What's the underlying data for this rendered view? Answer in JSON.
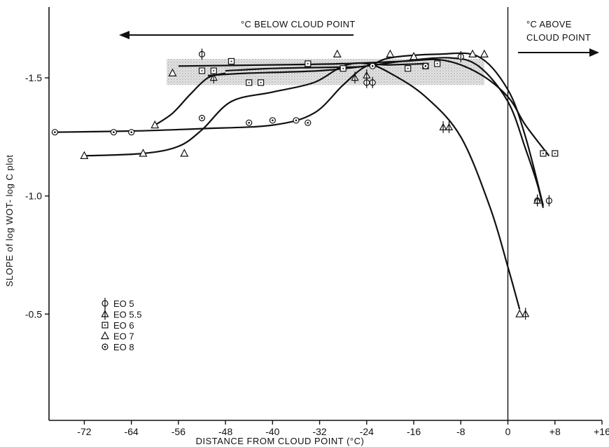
{
  "chart_data": {
    "type": "scatter",
    "title": "",
    "xlabel": "DISTANCE FROM CLOUD POINT (°C)",
    "ylabel": "SLOPE of log WOT- log C plot",
    "xlim": [
      -78,
      16
    ],
    "ylim": [
      -1.8,
      -0.05
    ],
    "y_reversed": true,
    "x_ticks": [
      -72,
      -64,
      -56,
      -48,
      -40,
      -32,
      -24,
      -16,
      -8,
      0,
      8,
      16
    ],
    "x_tick_labels": [
      "-72",
      "-64",
      "-56",
      "-48",
      "-40",
      "-32",
      "-24",
      "-16",
      "-8",
      "0",
      "+8",
      "+16"
    ],
    "y_ticks": [
      -1.5,
      -1.0,
      -0.5
    ],
    "y_tick_labels": [
      "-1.5",
      "-1.0",
      "-0.5"
    ],
    "grid": false,
    "legend_position": "bottom-left",
    "annotations": {
      "below": "°C BELOW CLOUD POINT",
      "above_line1": "°C ABOVE",
      "above_line2": "CLOUD POINT"
    },
    "shaded_band": {
      "x": [
        -58,
        -4
      ],
      "y": [
        -1.58,
        -1.47
      ]
    },
    "reference_line_x": 0,
    "series": [
      {
        "name": "EO 5",
        "marker": "circle-bar",
        "points": [
          [
            -52,
            -1.6
          ],
          [
            -24,
            -1.48
          ],
          [
            -23,
            -1.48
          ],
          [
            -8,
            -1.59
          ],
          [
            5,
            -0.98
          ],
          [
            7,
            -0.98
          ]
        ],
        "curve": [
          [
            -51,
            -1.51
          ],
          [
            -44,
            -1.52
          ],
          [
            -32,
            -1.53
          ],
          [
            -24,
            -1.55
          ],
          [
            -18,
            -1.57
          ],
          [
            -10,
            -1.585
          ],
          [
            -5,
            -1.55
          ],
          [
            0,
            -1.4
          ],
          [
            3,
            -1.2
          ],
          [
            5,
            -1.05
          ],
          [
            6,
            -0.95
          ]
        ]
      },
      {
        "name": "EO 5.5",
        "marker": "triangle-bar",
        "points": [
          [
            -50,
            -1.5
          ],
          [
            -26,
            -1.5
          ],
          [
            -24,
            -1.51
          ],
          [
            -11,
            -1.29
          ],
          [
            -10,
            -1.29
          ],
          [
            3,
            -0.5
          ],
          [
            5,
            -0.98
          ]
        ],
        "curve": [
          [
            -48,
            -1.53
          ],
          [
            -40,
            -1.54
          ],
          [
            -30,
            -1.545
          ],
          [
            -24,
            -1.55
          ],
          [
            -20,
            -1.585
          ],
          [
            -12,
            -1.6
          ],
          [
            -5,
            -1.59
          ],
          [
            0,
            -1.45
          ],
          [
            3,
            -1.25
          ],
          [
            6,
            -0.96
          ]
        ]
      },
      {
        "name": "EO 6",
        "marker": "square",
        "points": [
          [
            -52,
            -1.53
          ],
          [
            -50,
            -1.53
          ],
          [
            -47,
            -1.57
          ],
          [
            -44,
            -1.48
          ],
          [
            -42,
            -1.48
          ],
          [
            -34,
            -1.56
          ],
          [
            -28,
            -1.54
          ],
          [
            -17,
            -1.54
          ],
          [
            -14,
            -1.55
          ],
          [
            -12,
            -1.56
          ],
          [
            6,
            -1.18
          ],
          [
            8,
            -1.18
          ]
        ],
        "curve": [
          [
            -56,
            -1.55
          ],
          [
            -40,
            -1.555
          ],
          [
            -28,
            -1.56
          ],
          [
            -18,
            -1.57
          ],
          [
            -11,
            -1.575
          ],
          [
            -5,
            -1.52
          ],
          [
            0,
            -1.42
          ],
          [
            3,
            -1.3
          ],
          [
            7,
            -1.17
          ]
        ]
      },
      {
        "name": "EO 7",
        "marker": "triangle",
        "points": [
          [
            -72,
            -1.17
          ],
          [
            -62,
            -1.18
          ],
          [
            -55,
            -1.18
          ],
          [
            -60,
            -1.3
          ],
          [
            -57,
            -1.52
          ],
          [
            -29,
            -1.6
          ],
          [
            -20,
            -1.6
          ],
          [
            -16,
            -1.59
          ],
          [
            -6,
            -1.6
          ],
          [
            -4,
            -1.6
          ],
          [
            2,
            -0.5
          ]
        ],
        "curve": [
          [
            -72,
            -1.17
          ],
          [
            -62,
            -1.18
          ],
          [
            -56,
            -1.21
          ],
          [
            -52,
            -1.28
          ],
          [
            -47,
            -1.4
          ],
          [
            -40,
            -1.44
          ],
          [
            -33,
            -1.48
          ],
          [
            -28,
            -1.55
          ],
          [
            -24,
            -1.56
          ],
          [
            -20,
            -1.52
          ],
          [
            -14,
            -1.42
          ],
          [
            -8,
            -1.25
          ],
          [
            -3,
            -0.95
          ],
          [
            0,
            -0.7
          ],
          [
            2,
            -0.52
          ]
        ]
      },
      {
        "name": "EO 8",
        "marker": "circle-dot",
        "points": [
          [
            -77,
            -1.27
          ],
          [
            -67,
            -1.27
          ],
          [
            -64,
            -1.27
          ],
          [
            -52,
            -1.33
          ],
          [
            -44,
            -1.31
          ],
          [
            -40,
            -1.32
          ],
          [
            -36,
            -1.32
          ],
          [
            -34,
            -1.31
          ],
          [
            -23,
            -1.55
          ],
          [
            -14,
            -1.55
          ]
        ],
        "curve": [
          [
            -77,
            -1.27
          ],
          [
            -64,
            -1.275
          ],
          [
            -52,
            -1.285
          ],
          [
            -40,
            -1.3
          ],
          [
            -33,
            -1.35
          ],
          [
            -28,
            -1.47
          ],
          [
            -24,
            -1.55
          ],
          [
            -20,
            -1.555
          ],
          [
            -14,
            -1.56
          ]
        ]
      }
    ],
    "extra_curves": [
      [
        [
          -60,
          -1.3
        ],
        [
          -57,
          -1.35
        ],
        [
          -54,
          -1.43
        ],
        [
          -51,
          -1.5
        ],
        [
          -48,
          -1.52
        ]
      ]
    ]
  }
}
